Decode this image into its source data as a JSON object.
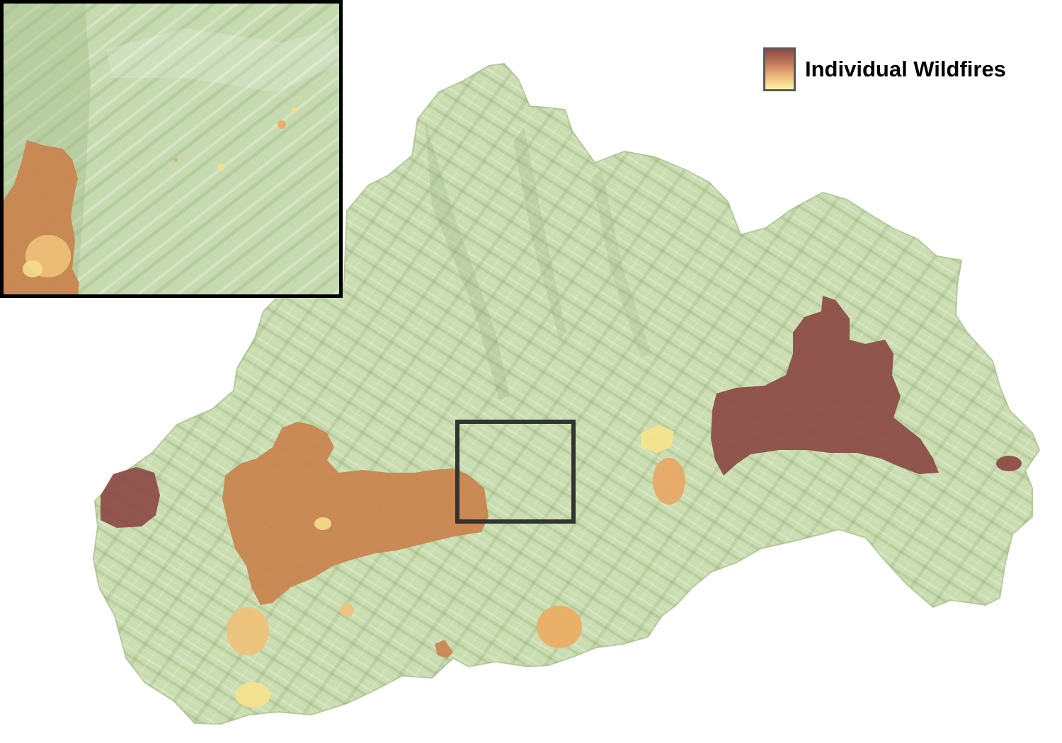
{
  "legend": {
    "label": "Individual Wildfires",
    "swatch_icon": "fire-severity-gradient-swatch",
    "gradient_colors": [
      "#8c4a45",
      "#c27a5a",
      "#eab37a",
      "#fdf3a4"
    ]
  },
  "colors": {
    "terrain": "#c9ddb0",
    "terrain_shadow": "#9fb684",
    "fire_dark": "#8c4a45",
    "fire_orange": "#c8845a",
    "fire_light_orange": "#e8ad68",
    "fire_pale_yellow": "#f3dd8a",
    "fire_faint_yellow": "#f7e7a0",
    "inset_border": "#000000",
    "zoom_box": "#333333"
  }
}
